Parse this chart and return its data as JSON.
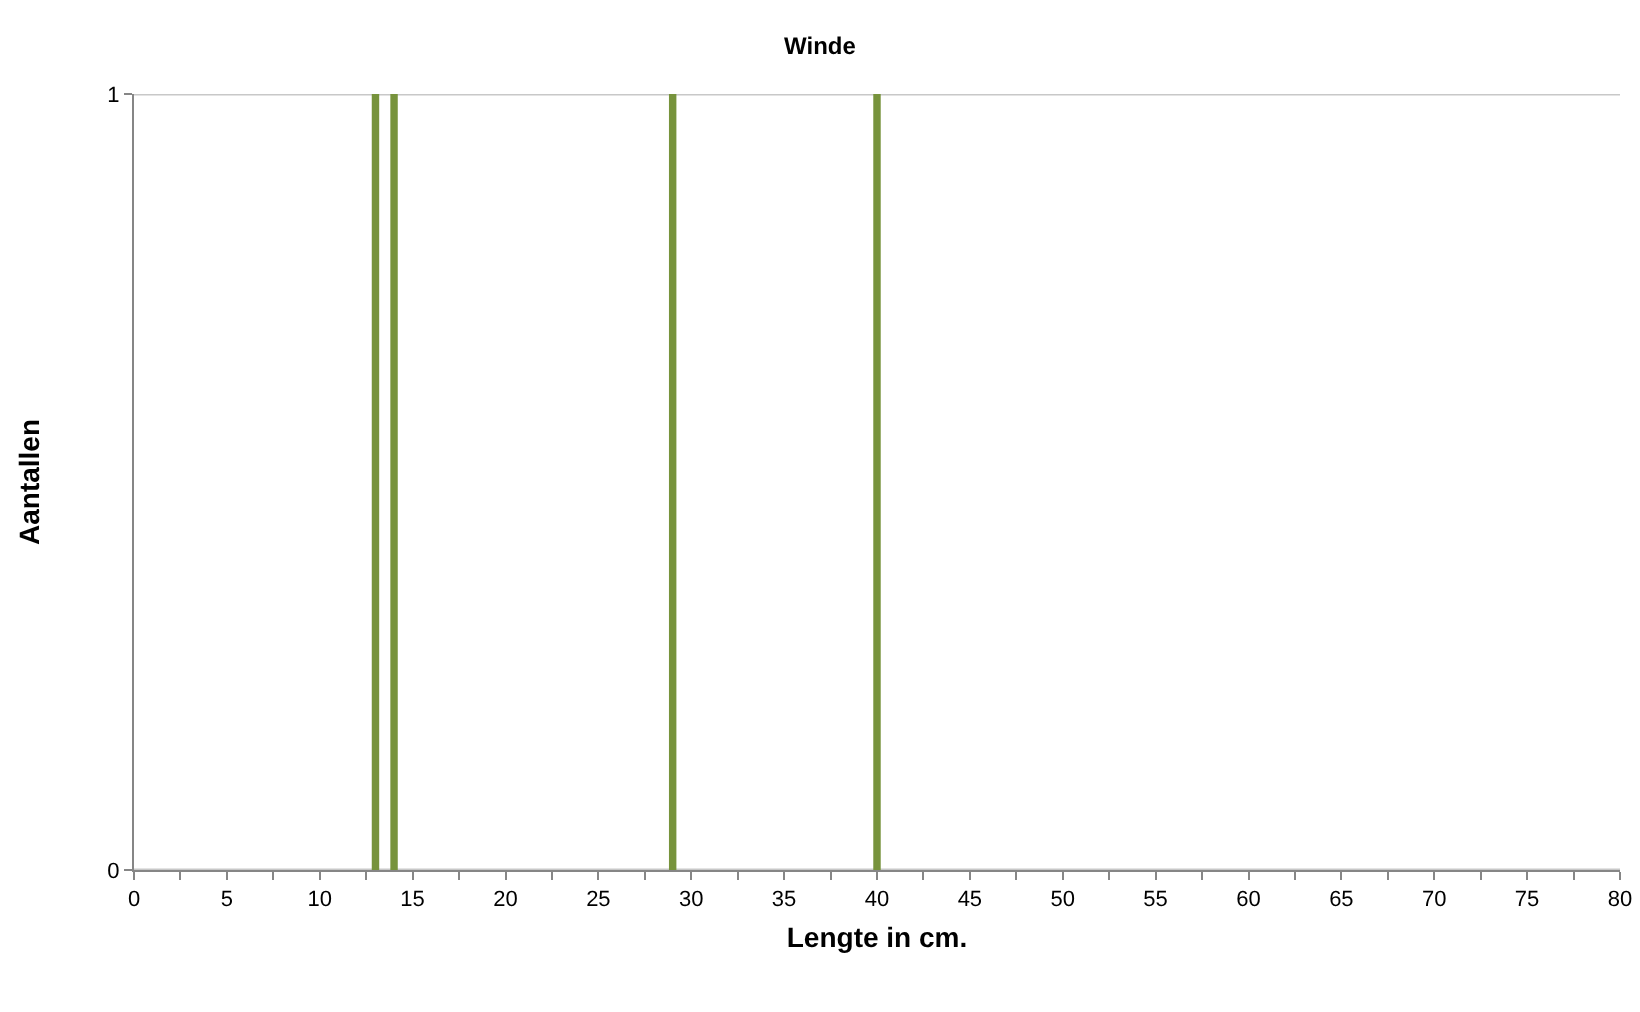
{
  "chart_data": {
    "type": "bar",
    "title": "Winde",
    "xlabel": "Lengte in cm.",
    "ylabel": "Aantallen",
    "x": [
      13,
      14,
      29,
      40
    ],
    "values": [
      1,
      1,
      1,
      1
    ],
    "color": "#77933c",
    "xlim": [
      0,
      80
    ],
    "xticks": [
      0,
      5,
      10,
      15,
      20,
      25,
      30,
      35,
      40,
      45,
      50,
      55,
      60,
      65,
      70,
      75,
      80
    ],
    "ylim": [
      0,
      1
    ],
    "yticks": [
      0,
      1
    ],
    "grid": "y"
  }
}
